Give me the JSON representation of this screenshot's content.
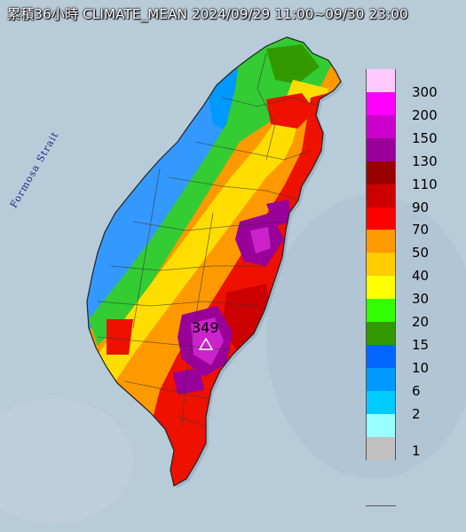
{
  "title": "累積36小時 CLIMATE_MEAN 2024/09/29 11:00~09/30 23:00",
  "strait_label": "Formosa Strait",
  "peak": {
    "value": "349",
    "marker": "triangle-icon"
  },
  "legend": {
    "unit_labels": [
      "300",
      "200",
      "150",
      "130",
      "110",
      "90",
      "70",
      "50",
      "40",
      "30",
      "20",
      "15",
      "10",
      "6",
      "2",
      "1"
    ],
    "colors": [
      "#ffcaff",
      "#ff00ff",
      "#cc00cc",
      "#990099",
      "#990000",
      "#cc0000",
      "#ff0000",
      "#ff9900",
      "#ffcc00",
      "#ffff00",
      "#33ff00",
      "#339900",
      "#0066ff",
      "#0099ff",
      "#00ccff",
      "#99ffff",
      "#c0c0c0"
    ]
  },
  "colors": {
    "sea": "#b8cbd9",
    "blue_low": "#3399ff",
    "green": "#33cc33",
    "yellow": "#ffdd00",
    "orange": "#ff9900",
    "red": "#ee1100",
    "purple": "#cc22cc"
  }
}
